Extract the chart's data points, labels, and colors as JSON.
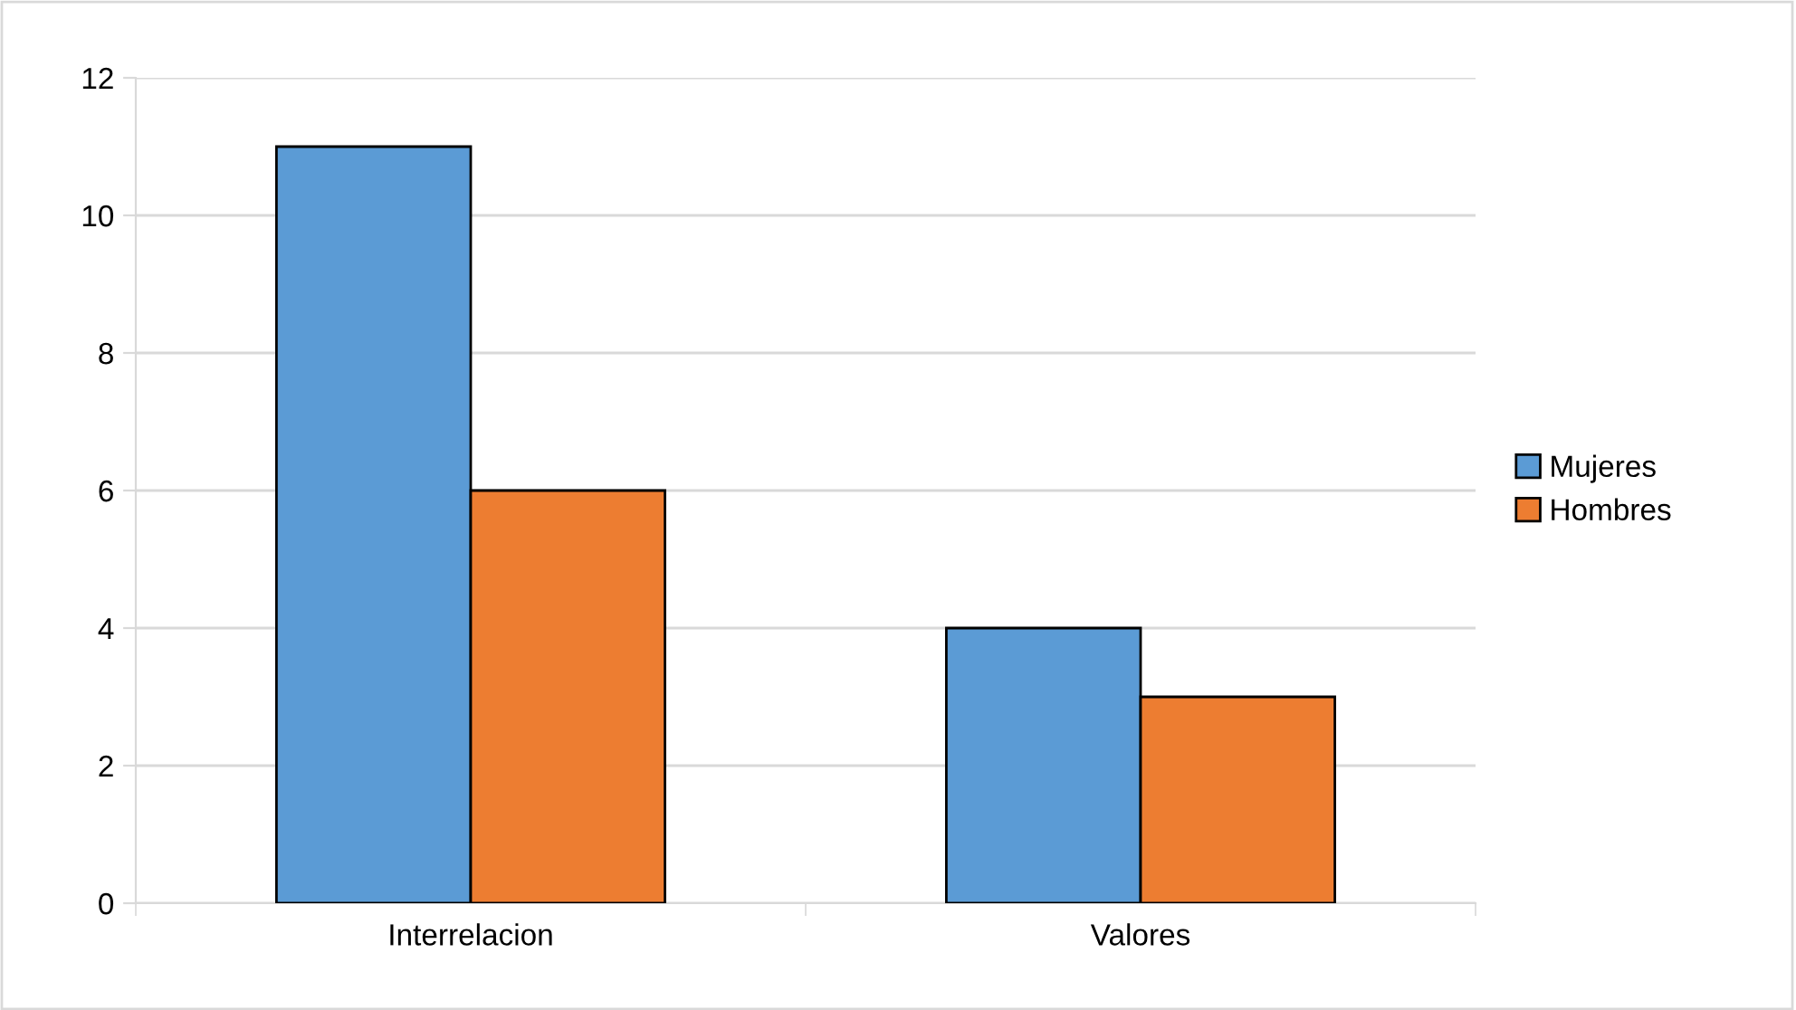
{
  "chart_data": {
    "type": "bar",
    "categories": [
      "Interrelacion",
      "Valores"
    ],
    "series": [
      {
        "name": "Mujeres",
        "color": "#5b9bd5",
        "values": [
          11,
          4
        ]
      },
      {
        "name": "Hombres",
        "color": "#ed7d31",
        "values": [
          6,
          3
        ]
      }
    ],
    "ylim": [
      0,
      12
    ],
    "yticks": [
      0,
      2,
      4,
      6,
      8,
      10,
      12
    ],
    "grid": "y",
    "legend": "right"
  }
}
